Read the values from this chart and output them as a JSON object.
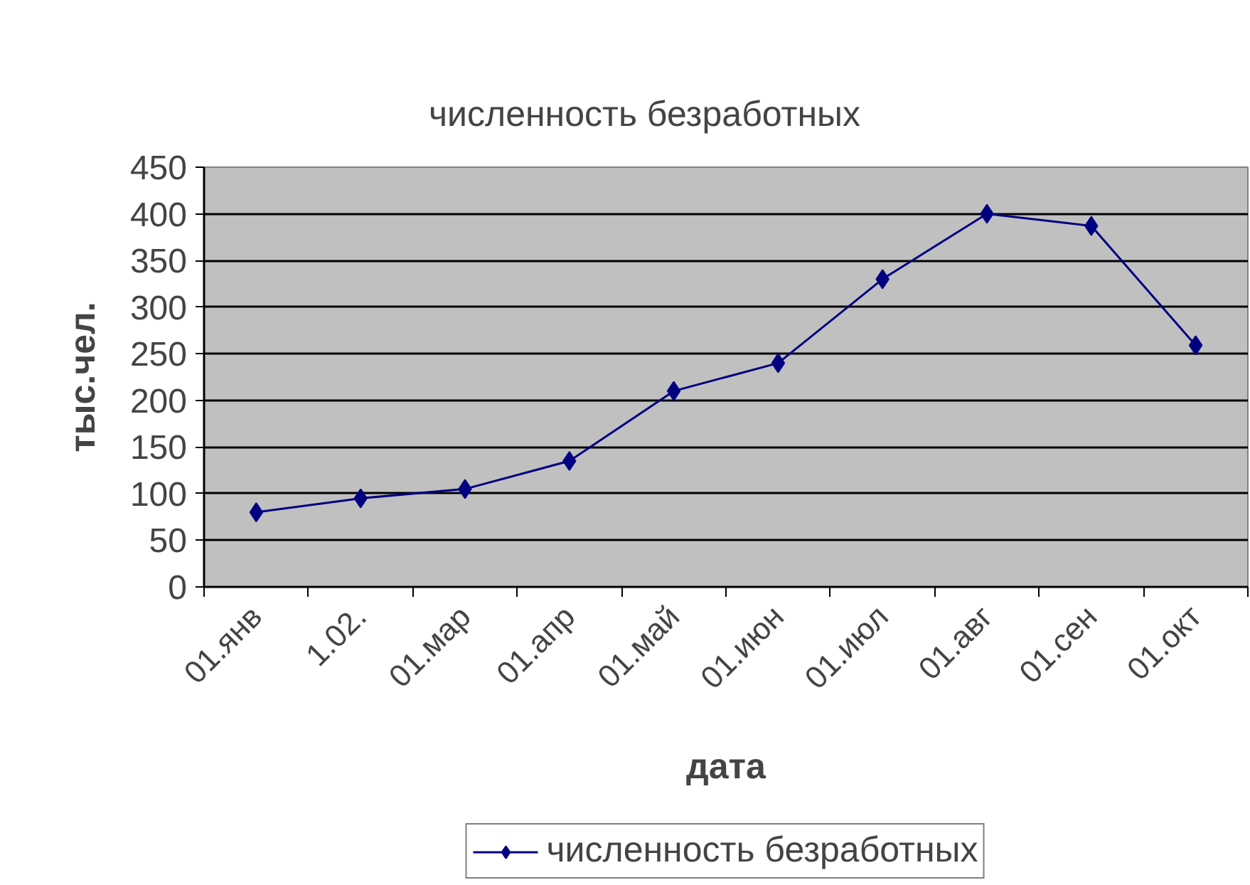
{
  "chart_data": {
    "type": "line",
    "title": "численность безработных",
    "xlabel": "дата",
    "ylabel": "тыс.чел.",
    "categories": [
      "01.янв",
      "1.02.",
      "01.мар",
      "01.апр",
      "01.май",
      "01.июн",
      "01.июл",
      "01.авг",
      "01.сен",
      "01.окт"
    ],
    "series": [
      {
        "name": "численность безработных",
        "color": "#000080",
        "values": [
          80,
          95,
          105,
          135,
          210,
          240,
          330,
          400,
          387,
          259
        ]
      }
    ],
    "ylim": [
      0,
      450
    ],
    "yticks": [
      0,
      50,
      100,
      150,
      200,
      250,
      300,
      350,
      400,
      450
    ],
    "grid": "y",
    "legend": "bottom",
    "marker": "diamond",
    "line_style": "solid"
  }
}
